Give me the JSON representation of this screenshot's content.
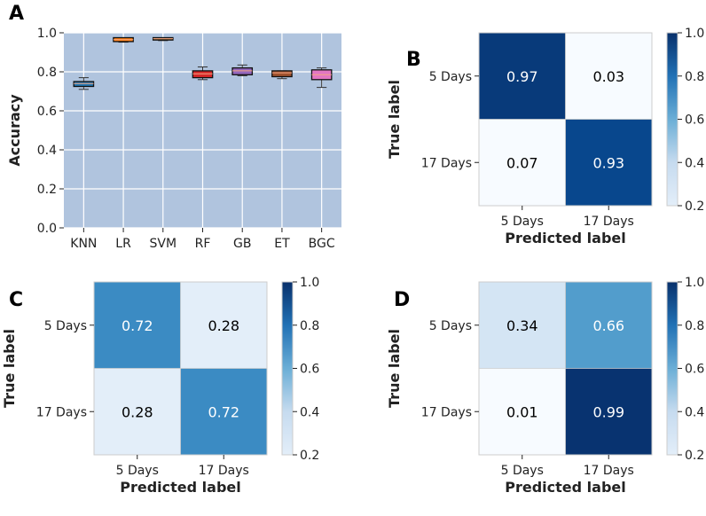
{
  "chart_data": [
    {
      "panel": "A",
      "type": "box",
      "ylabel": "Accuracy",
      "xlabel": "",
      "ylim": [
        0,
        1.0
      ],
      "yticks": [
        "0.0",
        "0.2",
        "0.4",
        "0.6",
        "0.8",
        "1.0"
      ],
      "grid": true,
      "background": "#b0c4de",
      "categories": [
        "KNN",
        "LR",
        "SVM",
        "RF",
        "GB",
        "ET",
        "BGC"
      ],
      "colors": [
        "#1f77b4",
        "#ff7f0e",
        "#8c6d31",
        "#d62728",
        "#9467bd",
        "#a0522d",
        "#e377c2"
      ],
      "boxes": [
        {
          "min": 0.71,
          "q1": 0.725,
          "median": 0.74,
          "q3": 0.75,
          "max": 0.77
        },
        {
          "min": 0.952,
          "q1": 0.955,
          "median": 0.965,
          "q3": 0.975,
          "max": 0.975
        },
        {
          "min": 0.96,
          "q1": 0.963,
          "median": 0.97,
          "q3": 0.975,
          "max": 0.975
        },
        {
          "min": 0.76,
          "q1": 0.77,
          "median": 0.79,
          "q3": 0.805,
          "max": 0.825
        },
        {
          "min": 0.78,
          "q1": 0.785,
          "median": 0.805,
          "q3": 0.82,
          "max": 0.835
        },
        {
          "min": 0.765,
          "q1": 0.775,
          "median": 0.795,
          "q3": 0.805,
          "max": 0.805
        },
        {
          "min": 0.72,
          "q1": 0.76,
          "median": 0.785,
          "q3": 0.81,
          "max": 0.82
        }
      ]
    },
    {
      "panel": "B",
      "type": "heatmap",
      "xlabel": "Predicted label",
      "ylabel": "True label",
      "xticks": [
        "5 Days",
        "17 Days"
      ],
      "yticks": [
        "5 Days",
        "17 Days"
      ],
      "values": [
        [
          0.97,
          0.03
        ],
        [
          0.07,
          0.93
        ]
      ],
      "labels": [
        [
          "0.97",
          "0.03"
        ],
        [
          "0.07",
          "0.93"
        ]
      ],
      "colorbar": {
        "range": [
          0.2,
          1.0
        ],
        "ticks": [
          "0.2",
          "0.4",
          "0.6",
          "0.8",
          "1.0"
        ]
      }
    },
    {
      "panel": "C",
      "type": "heatmap",
      "xlabel": "Predicted label",
      "ylabel": "True label",
      "xticks": [
        "5 Days",
        "17 Days"
      ],
      "yticks": [
        "5 Days",
        "17 Days"
      ],
      "values": [
        [
          0.72,
          0.28
        ],
        [
          0.28,
          0.72
        ]
      ],
      "labels": [
        [
          "0.72",
          "0.28"
        ],
        [
          "0.28",
          "0.72"
        ]
      ],
      "colorbar": {
        "range": [
          0.2,
          1.0
        ],
        "ticks": [
          "0.2",
          "0.4",
          "0.6",
          "0.8",
          "1.0"
        ]
      }
    },
    {
      "panel": "D",
      "type": "heatmap",
      "xlabel": "Predicted label",
      "ylabel": "True label",
      "xticks": [
        "5 Days",
        "17 Days"
      ],
      "yticks": [
        "5 Days",
        "17 Days"
      ],
      "values": [
        [
          0.34,
          0.66
        ],
        [
          0.01,
          0.99
        ]
      ],
      "labels": [
        [
          "0.34",
          "0.66"
        ],
        [
          "0.01",
          "0.99"
        ]
      ],
      "colorbar": {
        "range": [
          0.2,
          1.0
        ],
        "ticks": [
          "0.2",
          "0.4",
          "0.6",
          "0.8",
          "1.0"
        ]
      }
    }
  ]
}
